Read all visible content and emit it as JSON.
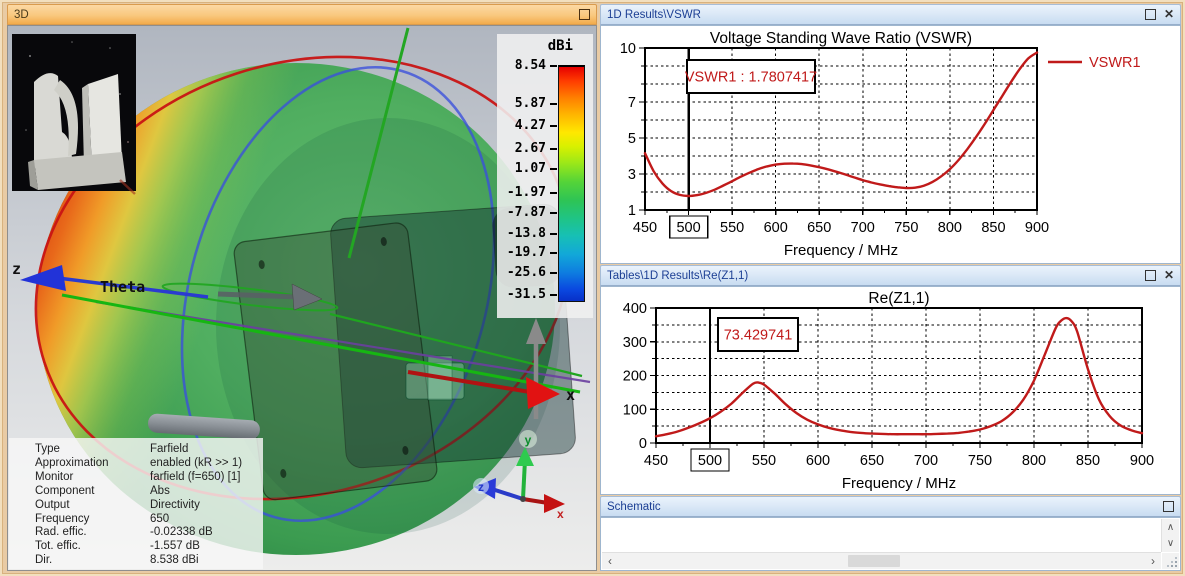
{
  "window": {
    "frame_color": "#E9CBA4"
  },
  "icons": {
    "close": "✕",
    "scroll_up": "∧",
    "scroll_down": "∨",
    "scroll_left": "‹",
    "scroll_right": "›"
  },
  "panel_3d": {
    "title": "3D",
    "axis_labels": {
      "theta": "Theta",
      "x": "x",
      "z": "z"
    },
    "triad_labels": {
      "x": "x",
      "y": "y",
      "z": "z"
    },
    "colorbar": {
      "unit": "dBi",
      "ticks": [
        "8.54",
        "5.87",
        "4.27",
        "2.67",
        "1.07",
        "-1.97",
        "-7.87",
        "-13.8",
        "-19.7",
        "-25.6",
        "-31.5"
      ]
    },
    "info_rows": [
      {
        "label": "Type",
        "value": "Farfield"
      },
      {
        "label": "Approximation",
        "value": "enabled (kR >> 1)"
      },
      {
        "label": "Monitor",
        "value": "farfield (f=650) [1]"
      },
      {
        "label": "Component",
        "value": "Abs"
      },
      {
        "label": "Output",
        "value": "Directivity"
      },
      {
        "label": "Frequency",
        "value": "650"
      },
      {
        "label": "Rad. effic.",
        "value": "-0.02338 dB"
      },
      {
        "label": "Tot. effic.",
        "value": "-1.557 dB"
      },
      {
        "label": "Dir.",
        "value": "8.538 dBi"
      }
    ]
  },
  "panel_vswr": {
    "title": "1D Results\\VSWR"
  },
  "panel_rez": {
    "title": "Tables\\1D Results\\Re(Z1,1)"
  },
  "panel_schematic": {
    "title": "Schematic"
  },
  "chart_data": [
    {
      "type": "line",
      "title": "Voltage Standing Wave Ratio (VSWR)",
      "xlabel": "Frequency / MHz",
      "ylabel": "",
      "xlim": [
        450,
        900
      ],
      "ylim": [
        1,
        10
      ],
      "x_ticks": [
        450,
        500,
        550,
        600,
        650,
        700,
        750,
        800,
        850,
        900
      ],
      "y_labeled_ticks": [
        1,
        3,
        5,
        7,
        10
      ],
      "y_grid_step": 1,
      "grid": "dashed",
      "legend": {
        "label": "VSWR1",
        "color": "#C01A1A",
        "position": "right-outside"
      },
      "marker": {
        "x": 500,
        "label": "VSWR1 : 1.7807417",
        "boxed_tick": "500"
      },
      "series": [
        {
          "name": "VSWR1",
          "color": "#C01A1A",
          "x": [
            450,
            460,
            470,
            480,
            490,
            500,
            510,
            520,
            530,
            540,
            550,
            560,
            570,
            580,
            590,
            600,
            610,
            620,
            630,
            640,
            650,
            660,
            670,
            680,
            690,
            700,
            710,
            720,
            730,
            740,
            750,
            760,
            770,
            780,
            790,
            800,
            810,
            820,
            830,
            840,
            850,
            860,
            870,
            880,
            890,
            900
          ],
          "y": [
            4.15,
            3.15,
            2.48,
            2.05,
            1.84,
            1.78,
            1.83,
            1.95,
            2.13,
            2.36,
            2.6,
            2.85,
            3.07,
            3.27,
            3.42,
            3.52,
            3.57,
            3.58,
            3.55,
            3.48,
            3.38,
            3.26,
            3.12,
            2.97,
            2.81,
            2.66,
            2.53,
            2.42,
            2.33,
            2.26,
            2.22,
            2.24,
            2.35,
            2.56,
            2.87,
            3.27,
            3.78,
            4.38,
            5.05,
            5.78,
            6.55,
            7.33,
            8.1,
            8.82,
            9.42,
            9.75
          ]
        }
      ]
    },
    {
      "type": "line",
      "title": "Re(Z1,1)",
      "xlabel": "Frequency / MHz",
      "ylabel": "",
      "xlim": [
        450,
        900
      ],
      "ylim": [
        0,
        400
      ],
      "x_ticks": [
        450,
        500,
        550,
        600,
        650,
        700,
        750,
        800,
        850,
        900
      ],
      "y_labeled_ticks": [
        0,
        100,
        200,
        300,
        400
      ],
      "y_grid_step": 50,
      "grid": "dashed",
      "marker": {
        "x": 500,
        "label": "73.429741",
        "boxed_tick": "500"
      },
      "series": [
        {
          "name": "Re(Z1,1)",
          "color": "#C01A1A",
          "x": [
            450,
            460,
            470,
            480,
            490,
            500,
            510,
            520,
            530,
            540,
            545,
            550,
            560,
            570,
            580,
            590,
            600,
            610,
            620,
            630,
            640,
            650,
            660,
            670,
            680,
            690,
            700,
            710,
            720,
            730,
            740,
            750,
            760,
            770,
            780,
            790,
            800,
            810,
            820,
            825,
            830,
            835,
            840,
            850,
            860,
            870,
            880,
            890,
            900
          ],
          "y": [
            20,
            26,
            34,
            45,
            58,
            73.4,
            93,
            117,
            148,
            176,
            179,
            173,
            146,
            115,
            89,
            69,
            55,
            45,
            38,
            33,
            30,
            28,
            27,
            26,
            26,
            26,
            26,
            27,
            28,
            30,
            34,
            40,
            50,
            65,
            90,
            128,
            185,
            262,
            340,
            362,
            370,
            360,
            330,
            218,
            130,
            80,
            52,
            38,
            29
          ]
        }
      ]
    }
  ]
}
